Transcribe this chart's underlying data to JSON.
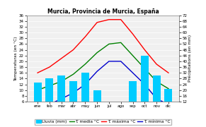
{
  "title": "Murcia, Provincia de Murcia, España",
  "months": [
    "ene",
    "feb",
    "mar",
    "abr",
    "may",
    "jun",
    "jul",
    "ago",
    "sep",
    "oct",
    "nov",
    "dic"
  ],
  "lluvia_mm": [
    25,
    28,
    30,
    26,
    32,
    20,
    6,
    10,
    26,
    44,
    30,
    21
  ],
  "t_media": [
    10.0,
    11.5,
    13.0,
    15.5,
    19.0,
    23.0,
    26.0,
    26.5,
    22.0,
    17.5,
    13.0,
    10.5
  ],
  "t_maxima": [
    16.0,
    18.0,
    21.0,
    24.0,
    28.5,
    33.5,
    34.5,
    34.5,
    29.5,
    24.0,
    19.0,
    16.0
  ],
  "t_minima": [
    4.0,
    5.0,
    7.0,
    9.0,
    12.0,
    16.5,
    20.0,
    20.0,
    16.0,
    12.0,
    7.0,
    5.0
  ],
  "bar_color": "#00ccff",
  "line_media_color": "#008000",
  "line_maxima_color": "#ff0000",
  "line_minima_color": "#0000cc",
  "ylim_left": [
    6,
    36
  ],
  "ylim_right": [
    12,
    72
  ],
  "yticks_left": [
    6,
    8,
    10,
    12,
    14,
    16,
    18,
    20,
    22,
    24,
    26,
    28,
    30,
    32,
    34,
    36
  ],
  "yticks_right": [
    12,
    16,
    20,
    24,
    28,
    32,
    36,
    40,
    44,
    48,
    52,
    56,
    60,
    64,
    68,
    72
  ],
  "ylabel_left": "Temperaturas (en °C)",
  "ylabel_right": "Précipitations (en mm)",
  "legend_items": [
    "Lluvia (mm)",
    "T. media °C",
    "T. máxima °C",
    "T. mínima °C"
  ],
  "legend_colors": [
    "#00ccff",
    "#008000",
    "#ff0000",
    "#0000cc"
  ],
  "title_fontsize": 5.5,
  "axis_fontsize": 4.2,
  "legend_fontsize": 4.2,
  "tick_fontsize": 4.0,
  "bg_color": "#f0f0f0"
}
